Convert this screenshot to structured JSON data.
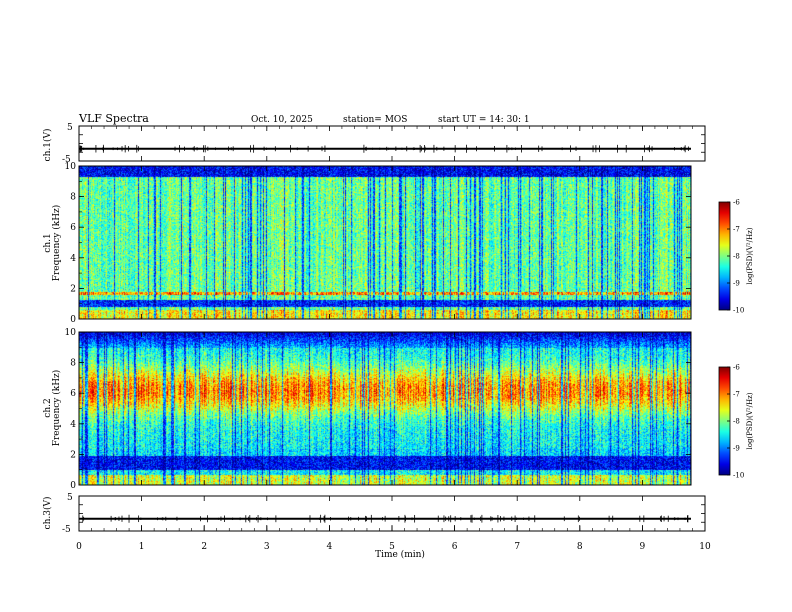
{
  "header": {
    "title": "VLF Spectra",
    "date": "Oct. 10, 2025",
    "station": "station= MOS",
    "start_ut": "start  UT =  14: 30: 1"
  },
  "chart_data": [
    {
      "type": "line",
      "name": "ch1-waveform",
      "ylabel": "ch.1(V)",
      "yticks": [
        "5",
        "-5"
      ],
      "ylim": [
        -5,
        5
      ],
      "xlim": [
        0,
        10
      ],
      "approx_level": -1.5
    },
    {
      "type": "heatmap",
      "name": "ch1-spectrogram",
      "ylabel": "ch.1\nFrequency (kHz)",
      "yticks": [
        "10",
        "8",
        "6",
        "4",
        "2",
        "0"
      ],
      "ylim": [
        0,
        10
      ],
      "xlim": [
        0,
        9.8
      ],
      "colorbar": {
        "label": "log(PSD)(V²/Hz)",
        "ticks": [
          "-6",
          "-7",
          "-8",
          "-9",
          "-10"
        ],
        "range": [
          -10,
          -6
        ]
      }
    },
    {
      "type": "heatmap",
      "name": "ch2-spectrogram",
      "ylabel": "ch.2\nFrequency (kHz)",
      "yticks": [
        "10",
        "8",
        "6",
        "4",
        "2",
        "0"
      ],
      "ylim": [
        0,
        10
      ],
      "xlim": [
        0,
        9.8
      ],
      "colorbar": {
        "label": "log(PSD)(V²/Hz)",
        "ticks": [
          "-6",
          "-7",
          "-8",
          "-9",
          "-10"
        ],
        "range": [
          -10,
          -6
        ]
      }
    },
    {
      "type": "line",
      "name": "ch3-waveform",
      "ylabel": "ch.3(V)",
      "yticks": [
        "5",
        "-5"
      ],
      "ylim": [
        -5,
        5
      ],
      "xlim": [
        0,
        10
      ],
      "approx_level": -1.5
    }
  ],
  "xaxis": {
    "label": "Time (min)",
    "ticks": [
      "0",
      "1",
      "2",
      "3",
      "4",
      "5",
      "6",
      "7",
      "8",
      "9",
      "10"
    ],
    "range": [
      0,
      10
    ]
  },
  "colors": {
    "spectrum_low": "#00007f",
    "spectrum_high": "#ff0000"
  }
}
